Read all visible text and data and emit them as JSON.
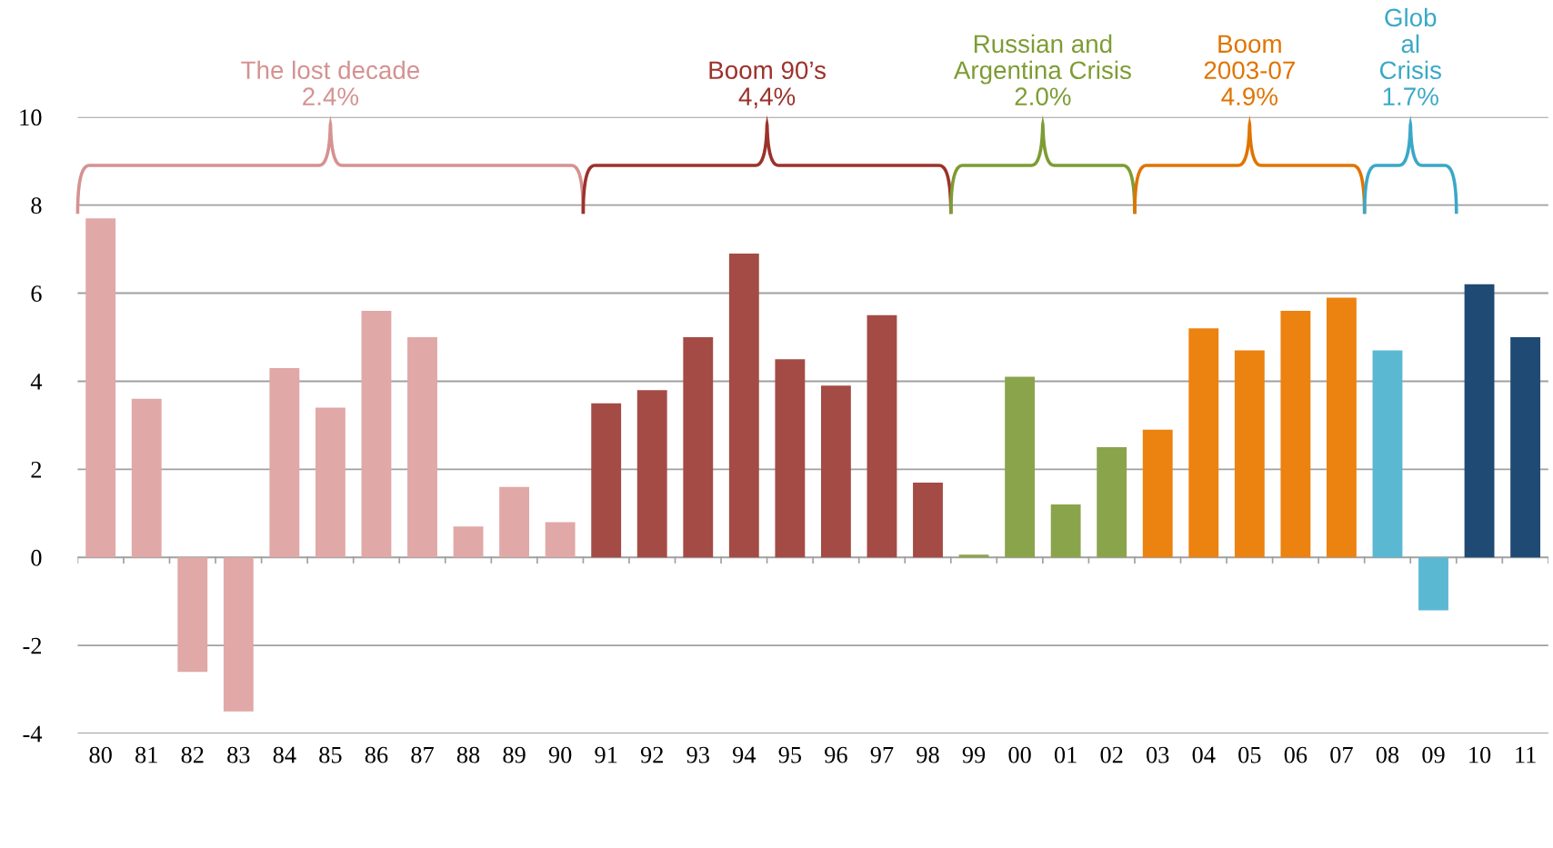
{
  "chart_data": {
    "type": "bar",
    "categories": [
      "80",
      "81",
      "82",
      "83",
      "84",
      "85",
      "86",
      "87",
      "88",
      "89",
      "90",
      "91",
      "92",
      "93",
      "94",
      "95",
      "96",
      "97",
      "98",
      "99",
      "00",
      "01",
      "02",
      "03",
      "04",
      "05",
      "06",
      "07",
      "08",
      "09",
      "10",
      "11"
    ],
    "values": [
      7.7,
      3.6,
      -2.6,
      -3.5,
      4.3,
      3.4,
      5.6,
      5.0,
      0.7,
      1.6,
      0.8,
      3.5,
      3.8,
      5.0,
      6.9,
      4.5,
      3.9,
      5.5,
      1.7,
      0.06,
      4.1,
      1.2,
      2.5,
      2.9,
      5.2,
      4.7,
      5.6,
      5.9,
      4.7,
      -1.2,
      6.2,
      5.0
    ],
    "colors": [
      "#e0a8a7",
      "#e0a8a7",
      "#e0a8a7",
      "#e0a8a7",
      "#e0a8a7",
      "#e0a8a7",
      "#e0a8a7",
      "#e0a8a7",
      "#e0a8a7",
      "#e0a8a7",
      "#e0a8a7",
      "#a44b45",
      "#a44b45",
      "#a44b45",
      "#a44b45",
      "#a44b45",
      "#a44b45",
      "#a44b45",
      "#a44b45",
      "#8aa44c",
      "#8aa44c",
      "#8aa44c",
      "#8aa44c",
      "#ec8210",
      "#ec8210",
      "#ec8210",
      "#ec8210",
      "#ec8210",
      "#5bb8d3",
      "#5bb8d3",
      "#1f4a73",
      "#1f4a73"
    ],
    "annotations": [
      "The lost decade\n2.4%",
      "Boom 90’s\n4,4%",
      "Russian and\nArgentina Crisis\n2.0%",
      "Boom\n2003-07\n4.9%",
      "Glob\nal\nCrisis\n1.7%"
    ],
    "ylim": [
      -4,
      10
    ],
    "yticks": [
      -4,
      -2,
      0,
      2,
      4,
      6,
      8,
      10
    ],
    "grid": "y"
  }
}
